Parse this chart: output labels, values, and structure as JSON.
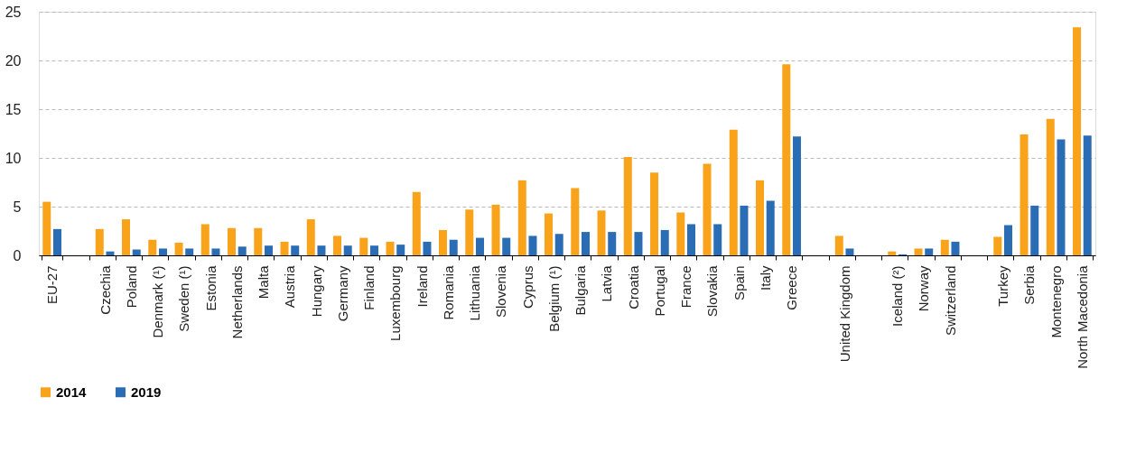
{
  "chart_data": {
    "type": "bar",
    "categories": [
      "EU-27",
      null,
      "Czechia",
      "Poland",
      "Denmark (¹)",
      "Sweden (¹)",
      "Estonia",
      "Netherlands",
      "Malta",
      "Austria",
      "Hungary",
      "Germany",
      "Finland",
      "Luxembourg",
      "Ireland",
      "Romania",
      "Lithuania",
      "Slovenia",
      "Cyprus",
      "Belgium (¹)",
      "Bulgaria",
      "Latvia",
      "Croatia",
      "Portugal",
      "France",
      "Slovakia",
      "Spain",
      "Italy",
      "Greece",
      null,
      "United Kingdom",
      null,
      "Iceland (²)",
      "Norway",
      "Switzerland",
      null,
      "Turkey",
      "Serbia",
      "Montenegro",
      "North Macedonia"
    ],
    "series": [
      {
        "name": "2014",
        "color": "#f9a31b",
        "values": [
          5.5,
          null,
          2.7,
          3.7,
          1.6,
          1.3,
          3.2,
          2.8,
          2.8,
          1.4,
          3.7,
          2.0,
          1.8,
          1.4,
          6.5,
          2.6,
          4.7,
          5.2,
          7.7,
          4.3,
          6.9,
          4.6,
          10.1,
          8.5,
          4.4,
          9.4,
          12.9,
          7.7,
          19.6,
          null,
          2.0,
          null,
          0.4,
          0.7,
          1.6,
          null,
          1.9,
          12.4,
          14.0,
          23.4
        ]
      },
      {
        "name": "2019",
        "color": "#2a6db5",
        "values": [
          2.7,
          null,
          0.4,
          0.6,
          0.7,
          0.7,
          0.7,
          0.9,
          1.0,
          1.0,
          1.0,
          1.0,
          1.0,
          1.1,
          1.4,
          1.6,
          1.8,
          1.8,
          2.0,
          2.2,
          2.4,
          2.4,
          2.4,
          2.6,
          3.2,
          3.2,
          5.1,
          5.6,
          12.2,
          null,
          0.7,
          null,
          0.1,
          0.7,
          1.4,
          null,
          3.1,
          5.1,
          11.9,
          12.3
        ]
      }
    ],
    "ylim": [
      0,
      25
    ],
    "yticks": [
      0,
      5,
      10,
      15,
      20,
      25
    ],
    "grid": "y",
    "legend": "bottom"
  }
}
